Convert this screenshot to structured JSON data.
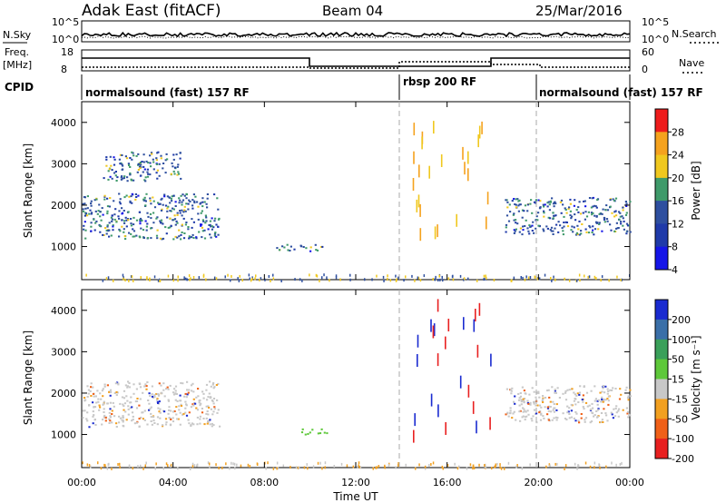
{
  "header": {
    "station": "Adak East (fitACF)",
    "beam": "Beam 04",
    "date": "25/Mar/2016"
  },
  "noise_panel": {
    "left_label": "N.Sky",
    "right_label": "N.Search",
    "left_ticks": [
      "10^5",
      "10^0"
    ],
    "right_ticks": [
      "10^5",
      "10^0"
    ]
  },
  "freq_panel": {
    "left_label_1": "Freq.",
    "left_label_2": "[MHz]",
    "right_label": "Nave",
    "left_ticks": [
      "18",
      "8"
    ],
    "right_ticks": [
      "60",
      "0"
    ]
  },
  "cpid_panel": {
    "label": "CPID",
    "segments": [
      {
        "label": "normalsound (fast) 157 RF",
        "start_h": 0,
        "end_h": 14
      },
      {
        "label": "rbsp 200 RF",
        "start_h": 14,
        "end_h": 20
      },
      {
        "label": "normalsound (fast) 157 RF",
        "start_h": 20,
        "end_h": 24
      }
    ]
  },
  "power_colorbar": {
    "label": "Power [dB]",
    "ticks": [
      "28",
      "24",
      "20",
      "16",
      "12",
      "8",
      "4"
    ],
    "colors": [
      "#ee1c1c",
      "#f5a21e",
      "#f0c81f",
      "#3f9a6a",
      "#2e4f9f",
      "#1f3aa9",
      "#1515e8"
    ]
  },
  "velocity_colorbar": {
    "label": "Velocity [m s⁻¹]",
    "ticks": [
      "200",
      "100",
      "50",
      "15",
      "-15",
      "-50",
      "-100",
      "-200"
    ],
    "colors": [
      "#1a2bd0",
      "#3a6fa8",
      "#3aa05a",
      "#5ec83a",
      "#c8c8c8",
      "#f2a020",
      "#f06018",
      "#e82020"
    ]
  },
  "x_axis": {
    "label": "Time UT",
    "ticks": [
      "00:00",
      "04:00",
      "08:00",
      "12:00",
      "16:00",
      "20:00",
      "00:00"
    ]
  },
  "chart_data": [
    {
      "type": "heatmap",
      "title": "Power",
      "ylabel": "Slant Range [km]",
      "xlabel": "",
      "xlim": [
        0,
        24
      ],
      "ylim": [
        200,
        4500
      ],
      "yticks": [
        1000,
        2000,
        3000,
        4000
      ],
      "colorbar_label": "Power [dB]",
      "features": [
        {
          "t_start": 0,
          "t_end": 6,
          "range_start": 1200,
          "range_end": 2300,
          "level": "8-20 dB"
        },
        {
          "t_start": 0.9,
          "t_end": 4.3,
          "range_start": 2600,
          "range_end": 3300,
          "level": "4-12 dB"
        },
        {
          "t_start": 8.5,
          "t_end": 10.5,
          "range_start": 900,
          "range_end": 1100,
          "level": "4-8 dB"
        },
        {
          "t_start": 18.5,
          "t_end": 24,
          "range_start": 1300,
          "range_end": 2200,
          "level": "8-16 dB"
        }
      ]
    },
    {
      "type": "heatmap",
      "title": "Velocity",
      "ylabel": "Slant Range [km]",
      "xlabel": "Time UT",
      "xlim": [
        0,
        24
      ],
      "ylim": [
        200,
        4500
      ],
      "yticks": [
        1000,
        2000,
        3000,
        4000
      ],
      "colorbar_label": "Velocity [m s⁻¹]",
      "features": [
        {
          "t_start": 0,
          "t_end": 6,
          "range_start": 1200,
          "range_end": 2300,
          "level": "-15 to 15 m/s"
        },
        {
          "t_start": 9.5,
          "t_end": 10.8,
          "range_start": 1000,
          "range_end": 1150,
          "level": "15 to 50 m/s"
        },
        {
          "t_start": 18.5,
          "t_end": 24,
          "range_start": 1300,
          "range_end": 2200,
          "level": "-15 to 15 m/s"
        }
      ]
    }
  ]
}
